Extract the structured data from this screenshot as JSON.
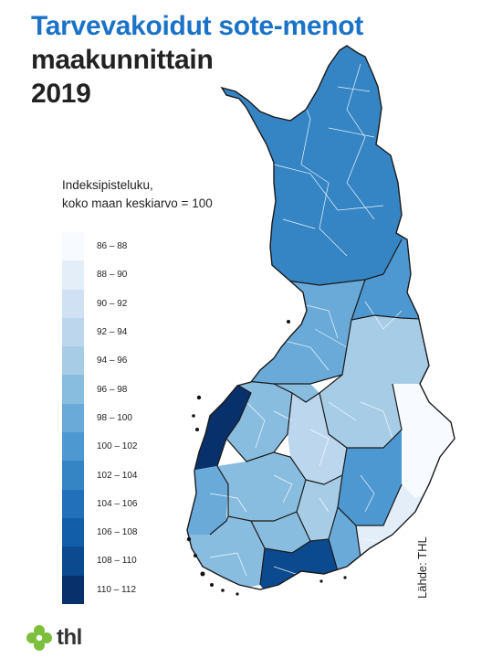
{
  "title": {
    "line1": "Tarvevakoidut sote-menot",
    "line2": "maakunnittain",
    "line3": "2019"
  },
  "legend": {
    "title_line1": "Indeksipisteluku,",
    "title_line2": "koko maan keskiarvo = 100",
    "items": [
      {
        "label": "86 – 88",
        "color": "#f7fbff"
      },
      {
        "label": "88 – 90",
        "color": "#e3eef9"
      },
      {
        "label": "90 – 92",
        "color": "#d0e1f3"
      },
      {
        "label": "92 – 94",
        "color": "#bcd6ee"
      },
      {
        "label": "94 – 96",
        "color": "#a6cce6"
      },
      {
        "label": "96 – 98",
        "color": "#89bde0"
      },
      {
        "label": "98 – 100",
        "color": "#6aaad9"
      },
      {
        "label": "100 – 102",
        "color": "#4d98d1"
      },
      {
        "label": "102 – 104",
        "color": "#3585c5"
      },
      {
        "label": "104 – 106",
        "color": "#2270b9"
      },
      {
        "label": "106 – 108",
        "color": "#135ea8"
      },
      {
        "label": "108 – 110",
        "color": "#0b4a8f"
      },
      {
        "label": "110 – 112",
        "color": "#08306b"
      }
    ]
  },
  "source": "Lähde: THL",
  "logo": {
    "text": "thl",
    "icon": "thl-flower-icon"
  }
}
